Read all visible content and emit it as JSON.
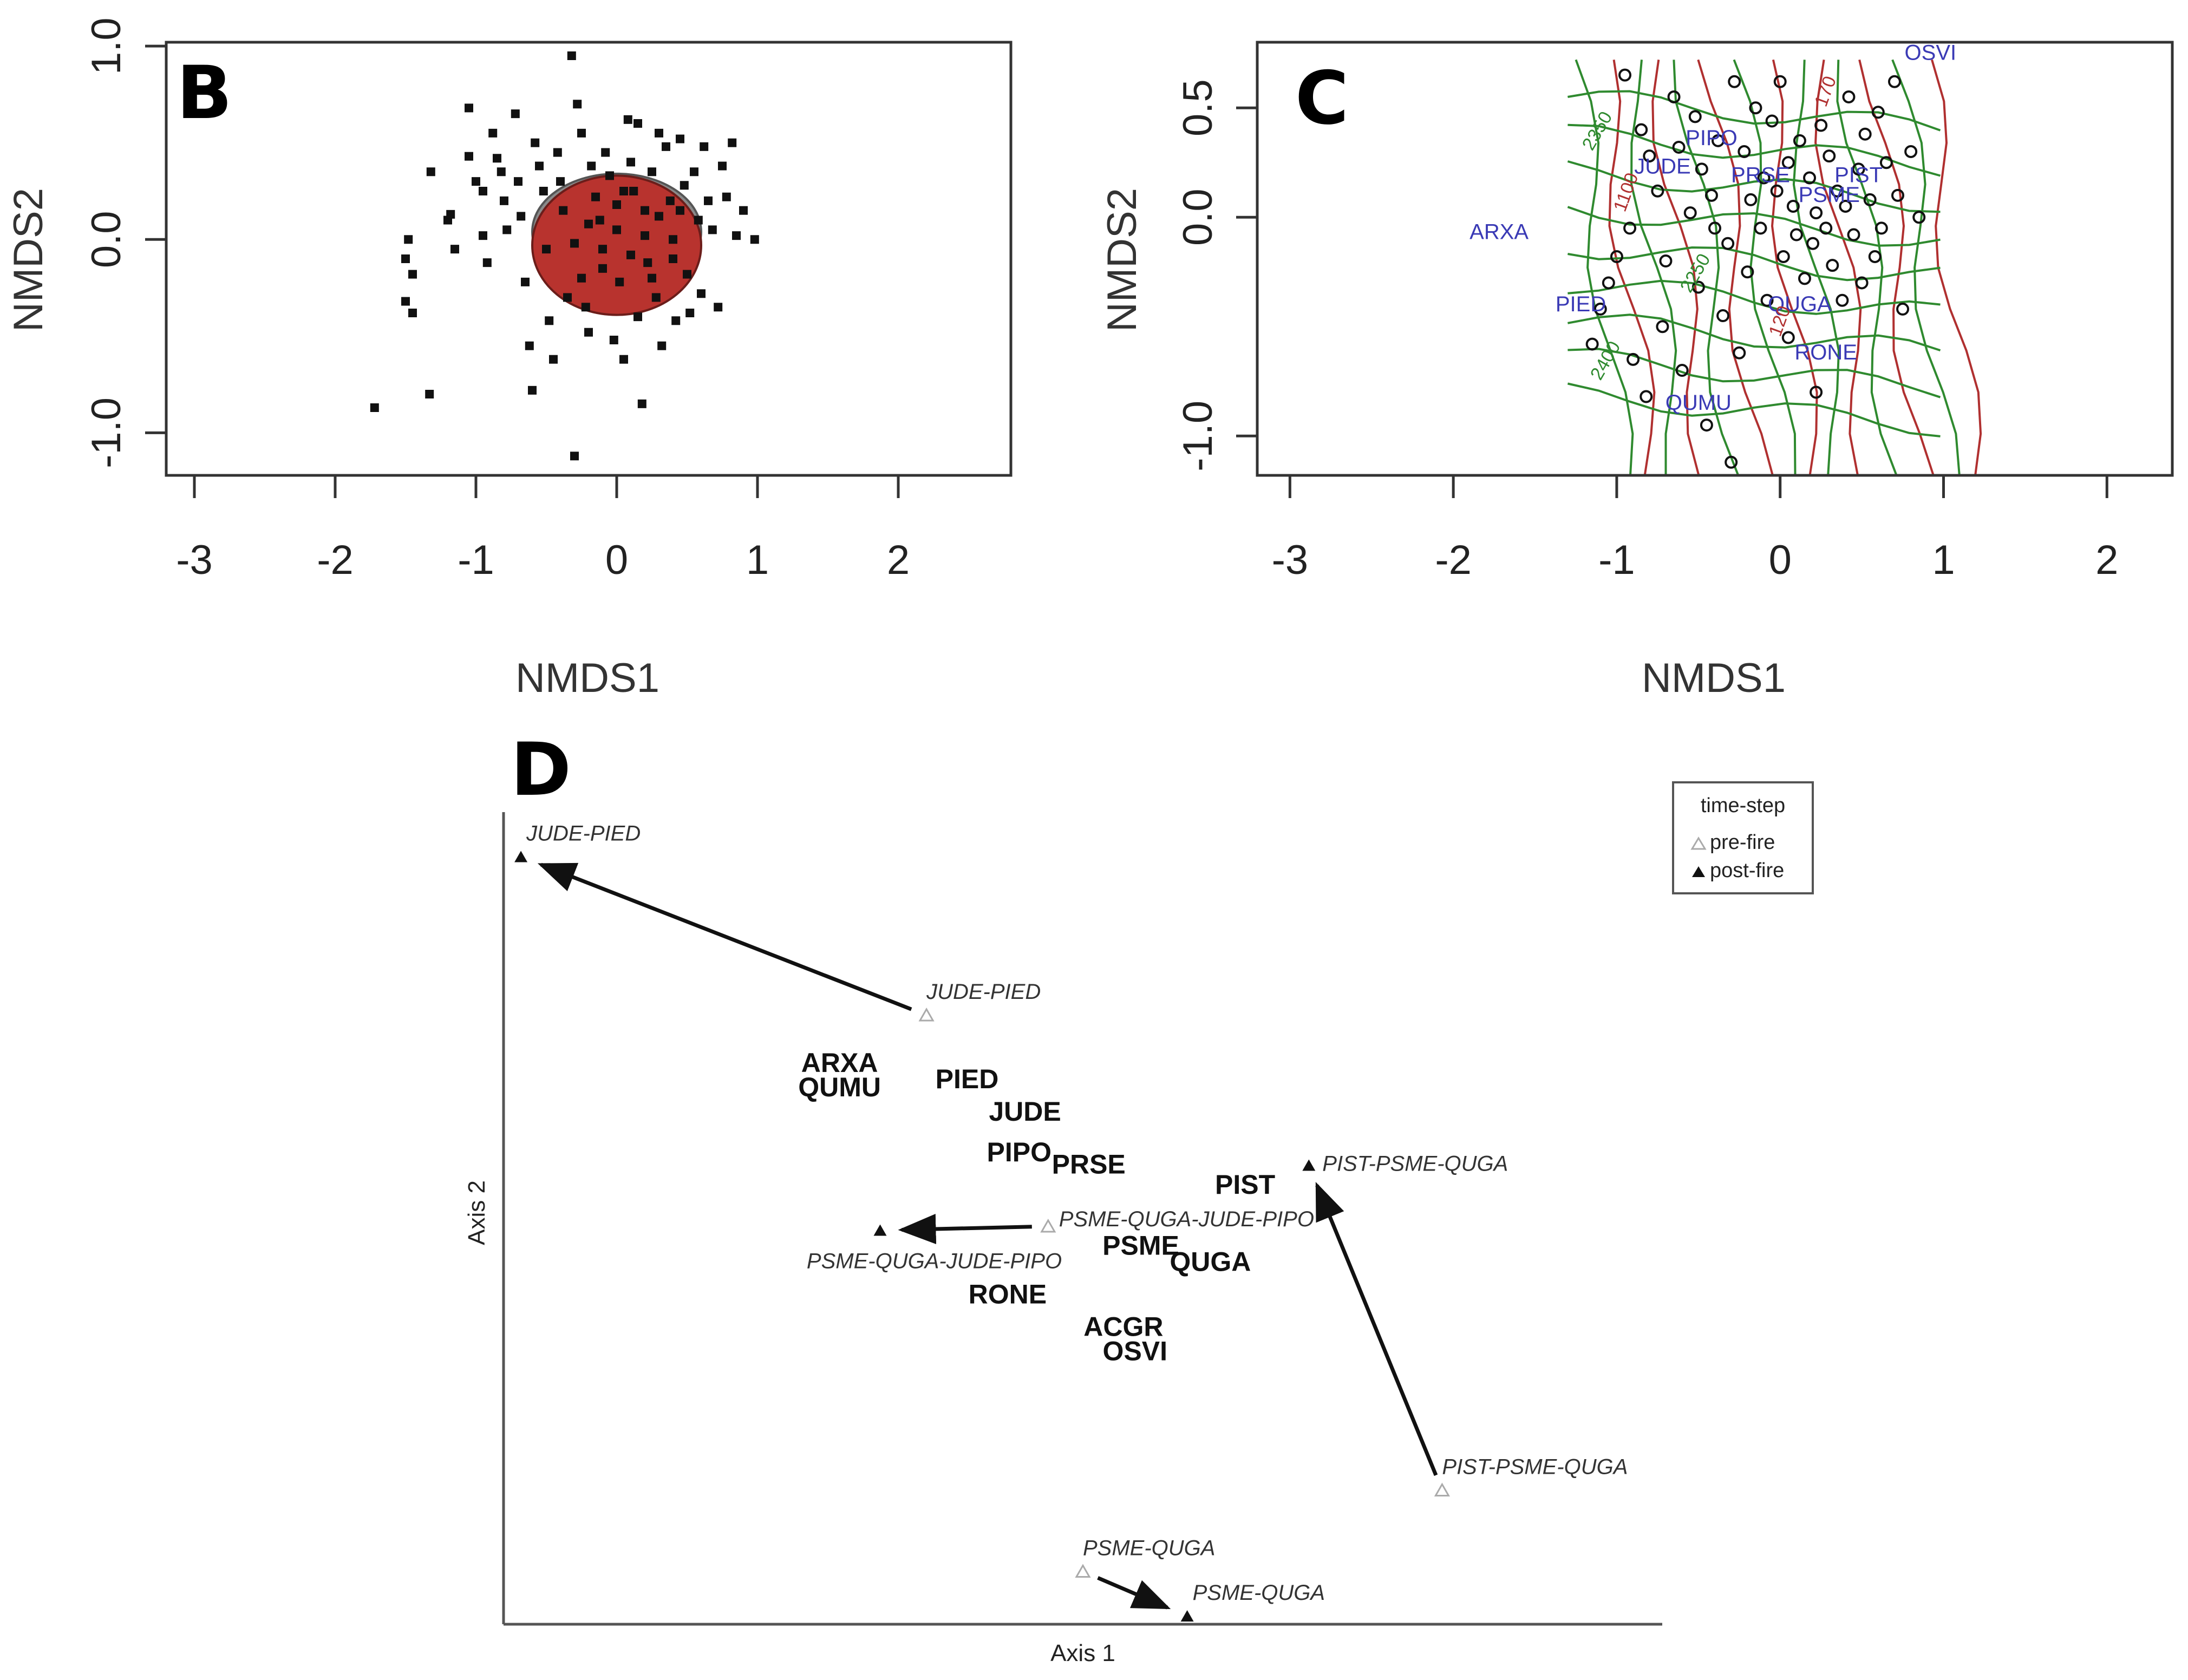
{
  "colors": {
    "ellipse_fill": "#b8332e",
    "ellipse_edge": "#7a7a7a",
    "species_c": "#3a3ab5",
    "contour_green": "#2f8a2f",
    "contour_red": "#b03030"
  },
  "chart_data": [
    {
      "panel": "B",
      "type": "scatter",
      "xlabel": "NMDS1",
      "ylabel": "NMDS2",
      "xlim": [
        -3.2,
        2.8
      ],
      "ylim": [
        -1.22,
        1.02
      ],
      "xticks": [
        "-3",
        "-2",
        "-1",
        "0",
        "1",
        "2"
      ],
      "yticks": [
        "-1.0",
        "0.0",
        "1.0"
      ],
      "ellipses": [
        {
          "cx": 0.0,
          "cy": 0.04,
          "rx": 0.6,
          "ry": 0.3,
          "fill": "grey"
        },
        {
          "cx": 0.0,
          "cy": -0.03,
          "rx": 0.6,
          "ry": 0.36,
          "fill": "red"
        }
      ],
      "points": [
        [
          -1.72,
          -0.87
        ],
        [
          -1.48,
          0.0
        ],
        [
          -1.5,
          -0.1
        ],
        [
          -1.45,
          -0.18
        ],
        [
          -1.5,
          -0.32
        ],
        [
          -1.45,
          -0.38
        ],
        [
          -1.32,
          0.35
        ],
        [
          -1.33,
          -0.8
        ],
        [
          -1.2,
          0.1
        ],
        [
          -1.18,
          0.13
        ],
        [
          -1.15,
          -0.05
        ],
        [
          -1.05,
          0.68
        ],
        [
          -1.05,
          0.43
        ],
        [
          -1.0,
          0.3
        ],
        [
          -0.95,
          0.25
        ],
        [
          -0.95,
          0.02
        ],
        [
          -0.92,
          -0.12
        ],
        [
          -0.88,
          0.55
        ],
        [
          -0.85,
          0.42
        ],
        [
          -0.82,
          0.35
        ],
        [
          -0.8,
          0.2
        ],
        [
          -0.78,
          0.05
        ],
        [
          -0.72,
          0.65
        ],
        [
          -0.7,
          0.3
        ],
        [
          -0.68,
          0.12
        ],
        [
          -0.65,
          -0.22
        ],
        [
          -0.62,
          -0.55
        ],
        [
          -0.6,
          -0.78
        ],
        [
          -0.58,
          0.5
        ],
        [
          -0.55,
          0.38
        ],
        [
          -0.52,
          0.25
        ],
        [
          -0.5,
          -0.05
        ],
        [
          -0.48,
          -0.42
        ],
        [
          -0.45,
          -0.62
        ],
        [
          -0.42,
          0.45
        ],
        [
          -0.4,
          0.3
        ],
        [
          -0.38,
          0.15
        ],
        [
          -0.35,
          -0.3
        ],
        [
          -0.32,
          0.95
        ],
        [
          -0.3,
          -1.12
        ],
        [
          -0.28,
          0.7
        ],
        [
          -0.25,
          0.55
        ],
        [
          -0.22,
          -0.35
        ],
        [
          -0.2,
          -0.48
        ],
        [
          -0.18,
          0.38
        ],
        [
          -0.15,
          0.22
        ],
        [
          -0.12,
          0.1
        ],
        [
          -0.1,
          -0.05
        ],
        [
          -0.08,
          0.45
        ],
        [
          -0.05,
          0.33
        ],
        [
          -0.02,
          -0.52
        ],
        [
          0.0,
          0.05
        ],
        [
          0.02,
          -0.22
        ],
        [
          0.05,
          -0.62
        ],
        [
          0.08,
          0.62
        ],
        [
          0.1,
          0.4
        ],
        [
          0.12,
          0.25
        ],
        [
          0.15,
          0.6
        ],
        [
          0.15,
          -0.4
        ],
        [
          0.18,
          -0.85
        ],
        [
          0.2,
          0.15
        ],
        [
          0.22,
          -0.12
        ],
        [
          0.25,
          0.35
        ],
        [
          0.28,
          -0.3
        ],
        [
          0.3,
          0.55
        ],
        [
          0.32,
          -0.55
        ],
        [
          0.35,
          0.48
        ],
        [
          0.38,
          0.2
        ],
        [
          0.4,
          -0.1
        ],
        [
          0.42,
          -0.42
        ],
        [
          0.45,
          0.52
        ],
        [
          0.48,
          0.28
        ],
        [
          0.5,
          -0.18
        ],
        [
          0.52,
          -0.38
        ],
        [
          0.55,
          0.35
        ],
        [
          0.58,
          0.1
        ],
        [
          0.6,
          -0.28
        ],
        [
          0.62,
          0.48
        ],
        [
          0.65,
          0.2
        ],
        [
          0.68,
          0.05
        ],
        [
          0.72,
          -0.35
        ],
        [
          0.75,
          0.38
        ],
        [
          0.78,
          0.22
        ],
        [
          0.82,
          0.5
        ],
        [
          0.85,
          0.02
        ],
        [
          0.9,
          0.15
        ],
        [
          0.98,
          0.0
        ],
        [
          -0.3,
          -0.02
        ],
        [
          -0.2,
          0.08
        ],
        [
          -0.1,
          -0.15
        ],
        [
          0.0,
          0.18
        ],
        [
          0.1,
          -0.08
        ],
        [
          0.2,
          0.02
        ],
        [
          0.3,
          0.12
        ],
        [
          0.4,
          0.0
        ],
        [
          -0.25,
          -0.2
        ],
        [
          0.05,
          0.25
        ],
        [
          0.25,
          -0.2
        ],
        [
          0.45,
          0.15
        ]
      ]
    },
    {
      "panel": "C",
      "type": "scatter",
      "xlabel": "NMDS1",
      "ylabel": "NMDS2",
      "xlim": [
        -3.2,
        2.4
      ],
      "ylim": [
        -1.18,
        0.8
      ],
      "xticks": [
        "-3",
        "-2",
        "-1",
        "0",
        "1",
        "2"
      ],
      "yticks": [
        "-1.0",
        "0.0",
        "0.5"
      ],
      "species": [
        {
          "label": "OSVI",
          "x": 0.92,
          "y": 0.72
        },
        {
          "label": "PIPO",
          "x": -0.42,
          "y": 0.33
        },
        {
          "label": "JUDE",
          "x": -0.72,
          "y": 0.2
        },
        {
          "label": "PRSE",
          "x": -0.12,
          "y": 0.16
        },
        {
          "label": "PIST",
          "x": 0.48,
          "y": 0.16
        },
        {
          "label": "PSME",
          "x": 0.3,
          "y": 0.07
        },
        {
          "label": "ARXA",
          "x": -1.72,
          "y": -0.1
        },
        {
          "label": "PIED",
          "x": -1.22,
          "y": -0.43
        },
        {
          "label": "QUGA",
          "x": 0.12,
          "y": -0.43
        },
        {
          "label": "RONE",
          "x": 0.28,
          "y": -0.65
        },
        {
          "label": "QUMU",
          "x": -0.5,
          "y": -0.88
        }
      ],
      "contour_labels_green": [
        "2350",
        "2250",
        "2400"
      ],
      "contour_labels_red": [
        "1100",
        "120",
        "170"
      ],
      "points": [
        [
          -1.15,
          -0.58
        ],
        [
          -1.1,
          -0.42
        ],
        [
          -1.05,
          -0.3
        ],
        [
          -1.0,
          -0.18
        ],
        [
          -0.95,
          0.65
        ],
        [
          -0.92,
          -0.05
        ],
        [
          -0.9,
          -0.65
        ],
        [
          -0.85,
          0.4
        ],
        [
          -0.82,
          -0.82
        ],
        [
          -0.8,
          0.28
        ],
        [
          -0.75,
          0.12
        ],
        [
          -0.72,
          -0.5
        ],
        [
          -0.7,
          -0.2
        ],
        [
          -0.65,
          0.55
        ],
        [
          -0.6,
          -0.7
        ],
        [
          -0.55,
          0.02
        ],
        [
          -0.52,
          0.46
        ],
        [
          -0.5,
          -0.32
        ],
        [
          -0.48,
          0.22
        ],
        [
          -0.45,
          -0.95
        ],
        [
          -0.42,
          0.1
        ],
        [
          -0.38,
          0.35
        ],
        [
          -0.35,
          -0.45
        ],
        [
          -0.32,
          -0.12
        ],
        [
          -0.28,
          0.62
        ],
        [
          -0.25,
          -0.62
        ],
        [
          -0.22,
          0.3
        ],
        [
          -0.2,
          -0.25
        ],
        [
          -0.18,
          0.08
        ],
        [
          -0.15,
          0.5
        ],
        [
          -0.12,
          -0.05
        ],
        [
          -0.1,
          0.18
        ],
        [
          -0.08,
          -0.38
        ],
        [
          -0.05,
          0.44
        ],
        [
          -0.02,
          0.12
        ],
        [
          0.0,
          0.62
        ],
        [
          0.02,
          -0.18
        ],
        [
          0.05,
          0.25
        ],
        [
          0.08,
          0.05
        ],
        [
          0.1,
          -0.08
        ],
        [
          0.12,
          0.35
        ],
        [
          0.15,
          -0.28
        ],
        [
          0.18,
          0.18
        ],
        [
          0.2,
          -0.12
        ],
        [
          0.22,
          0.02
        ],
        [
          0.25,
          0.42
        ],
        [
          0.28,
          -0.05
        ],
        [
          0.3,
          0.28
        ],
        [
          0.32,
          -0.22
        ],
        [
          0.35,
          0.12
        ],
        [
          0.38,
          -0.38
        ],
        [
          0.4,
          0.05
        ],
        [
          0.42,
          0.55
        ],
        [
          0.45,
          -0.08
        ],
        [
          0.48,
          0.22
        ],
        [
          0.5,
          -0.3
        ],
        [
          0.52,
          0.38
        ],
        [
          0.55,
          0.08
        ],
        [
          0.58,
          -0.18
        ],
        [
          0.6,
          0.48
        ],
        [
          0.62,
          -0.05
        ],
        [
          0.65,
          0.25
        ],
        [
          0.7,
          0.62
        ],
        [
          0.72,
          0.1
        ],
        [
          0.75,
          -0.42
        ],
        [
          0.8,
          0.3
        ],
        [
          0.85,
          0.0
        ],
        [
          -0.3,
          -1.12
        ],
        [
          0.22,
          -0.8
        ],
        [
          -0.62,
          0.32
        ],
        [
          -0.4,
          -0.05
        ],
        [
          0.05,
          -0.55
        ]
      ]
    },
    {
      "panel": "D",
      "type": "scatter",
      "xlabel": "Axis 1",
      "ylabel": "Axis 2",
      "xlim": [
        0,
        100
      ],
      "ylim": [
        0,
        100
      ],
      "legend": {
        "title": "time-step",
        "entries": [
          "pre-fire",
          "post-fire"
        ],
        "position": "top-right"
      },
      "species": [
        {
          "label": "ARXA",
          "x": 29,
          "y": 68
        },
        {
          "label": "QUMU",
          "x": 29,
          "y": 65
        },
        {
          "label": "PIED",
          "x": 40,
          "y": 66
        },
        {
          "label": "JUDE",
          "x": 45,
          "y": 62
        },
        {
          "label": "PIPO",
          "x": 44.5,
          "y": 57
        },
        {
          "label": "PRSE",
          "x": 50.5,
          "y": 55.5
        },
        {
          "label": "PIST",
          "x": 64,
          "y": 53
        },
        {
          "label": "PSME",
          "x": 55,
          "y": 45.5
        },
        {
          "label": "QUGA",
          "x": 61,
          "y": 43.5
        },
        {
          "label": "RONE",
          "x": 43.5,
          "y": 39.5
        },
        {
          "label": "ACGR",
          "x": 53.5,
          "y": 35.5
        },
        {
          "label": "OSVI",
          "x": 54.5,
          "y": 32.5
        }
      ],
      "trajectories": [
        {
          "name": "JUDE-PIED",
          "pre": [
            36.5,
            75
          ],
          "post": [
            1.5,
            94.5
          ]
        },
        {
          "name": "PSME-QUGA-JUDE-PIPO",
          "pre": [
            47,
            49
          ],
          "post": [
            32.5,
            48.5
          ]
        },
        {
          "name": "PIST-PSME-QUGA",
          "pre": [
            81,
            16.5
          ],
          "post": [
            69.5,
            56.5
          ]
        },
        {
          "name": "PSME-QUGA",
          "pre": [
            50,
            6.5
          ],
          "post": [
            59,
            1
          ]
        }
      ]
    }
  ]
}
